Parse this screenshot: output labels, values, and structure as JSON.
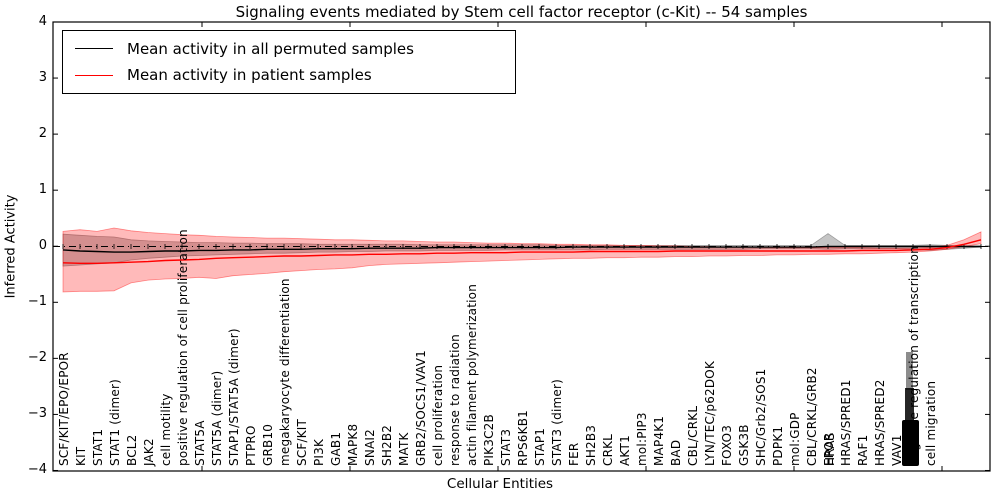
{
  "chart_data": {
    "type": "line",
    "title": "Signaling events mediated by Stem cell factor receptor (c-Kit) -- 54 samples",
    "xlabel": "Cellular Entities",
    "ylabel": "Inferred Activity",
    "ylim": [
      -4,
      4
    ],
    "ytick_labels": [
      "4",
      "3",
      "2",
      "1",
      "0",
      "−1",
      "−2",
      "−3",
      "−4"
    ],
    "grid": false,
    "legend": {
      "position": "upper left",
      "entries": [
        {
          "label": "Mean activity in all permuted samples",
          "color": "#000000"
        },
        {
          "label": "Mean activity in patient samples",
          "color": "#ff0000"
        }
      ]
    },
    "zero_reference_line": {
      "value": 0,
      "style": "dash-dot",
      "color": "#000000"
    },
    "n_positions": 55,
    "x_labels": [
      {
        "text": "SCF/KIT/EPO/EPOR",
        "slot": 0
      },
      {
        "text": "KIT",
        "slot": 1
      },
      {
        "text": "STAT1",
        "slot": 2
      },
      {
        "text": "STAT1 (dimer)",
        "slot": 3
      },
      {
        "text": "BCL2",
        "slot": 4
      },
      {
        "text": "JAK2",
        "slot": 5
      },
      {
        "text": "cell motility",
        "slot": 6
      },
      {
        "text": "positive regulation of cell proliferation",
        "slot": 7
      },
      {
        "text": "STAT5A",
        "slot": 8
      },
      {
        "text": "STAT5A (dimer)",
        "slot": 9
      },
      {
        "text": "STAP1/STAT5A (dimer)",
        "slot": 10
      },
      {
        "text": "PTPRO",
        "slot": 11
      },
      {
        "text": "GRB10",
        "slot": 12
      },
      {
        "text": "megakaryocyte differentiation",
        "slot": 13
      },
      {
        "text": "SCF/KIT",
        "slot": 14
      },
      {
        "text": "PI3K",
        "slot": 15
      },
      {
        "text": "GAB1",
        "slot": 16
      },
      {
        "text": "MAPK8",
        "slot": 17
      },
      {
        "text": "SNAI2",
        "slot": 18
      },
      {
        "text": "SH2B2",
        "slot": 19
      },
      {
        "text": "MATK",
        "slot": 20
      },
      {
        "text": "GRB2/SOCS1/VAV1",
        "slot": 21
      },
      {
        "text": "cell proliferation",
        "slot": 22
      },
      {
        "text": "response to radiation",
        "slot": 23
      },
      {
        "text": "actin filament polymerization",
        "slot": 24
      },
      {
        "text": "PIK3C2B",
        "slot": 25
      },
      {
        "text": "STAT3",
        "slot": 26
      },
      {
        "text": "RPS6KB1",
        "slot": 27
      },
      {
        "text": "STAP1",
        "slot": 28
      },
      {
        "text": "STAT3 (dimer)",
        "slot": 29
      },
      {
        "text": "FER",
        "slot": 30
      },
      {
        "text": "SH2B3",
        "slot": 31
      },
      {
        "text": "CRKL",
        "slot": 32
      },
      {
        "text": "AKT1",
        "slot": 33
      },
      {
        "text": "mol:PIP3",
        "slot": 34
      },
      {
        "text": "MAP4K1",
        "slot": 35
      },
      {
        "text": "BAD",
        "slot": 36
      },
      {
        "text": "CBL/CRKL",
        "slot": 37
      },
      {
        "text": "LYN/TEC/p62DOK",
        "slot": 38
      },
      {
        "text": "FOXO3",
        "slot": 39
      },
      {
        "text": "GSK3B",
        "slot": 40
      },
      {
        "text": "SHC/Grb2/SOS1",
        "slot": 41
      },
      {
        "text": "PDPK1",
        "slot": 42
      },
      {
        "text": "mol:GDP",
        "slot": 43
      },
      {
        "text": "CBL/CRKL/GRB2",
        "slot": 44
      },
      {
        "text": "EPOR",
        "slot": 45,
        "overlapped": true
      },
      {
        "text": "HRAS",
        "slot": 45.08,
        "overlapped": true
      },
      {
        "text": "HRAS/SPRED1",
        "slot": 46
      },
      {
        "text": "RAF1",
        "slot": 47
      },
      {
        "text": "HRAS/SPRED2",
        "slot": 48
      },
      {
        "text": "VAV1",
        "slot": 49
      },
      {
        "text": "negative regulation of transcription",
        "slot": 50,
        "overlapped": true
      },
      {
        "text": "cell migration",
        "slot": 51
      }
    ],
    "illegible_overlapping_label_cluster": {
      "slot": 50,
      "note": "several tick labels overprinted into an unreadable black block"
    },
    "series": [
      {
        "name": "Mean activity in all permuted samples",
        "color": "#000000",
        "values": [
          -0.06,
          -0.08,
          -0.09,
          -0.1,
          -0.1,
          -0.09,
          -0.08,
          -0.08,
          -0.07,
          -0.07,
          -0.06,
          -0.06,
          -0.05,
          -0.05,
          -0.05,
          -0.04,
          -0.04,
          -0.04,
          -0.03,
          -0.03,
          -0.03,
          -0.03,
          -0.02,
          -0.02,
          -0.02,
          -0.02,
          -0.02,
          -0.02,
          -0.02,
          -0.02,
          -0.01,
          -0.01,
          -0.01,
          -0.01,
          -0.01,
          -0.01,
          -0.01,
          -0.01,
          -0.01,
          -0.01,
          -0.01,
          -0.01,
          -0.01,
          -0.01,
          -0.01,
          0.0,
          0.0,
          0.0,
          0.0,
          0.0,
          0.0,
          0.0,
          0.0,
          0.0,
          0.0
        ]
      },
      {
        "name": "Mean activity in patient samples",
        "color": "#ff0000",
        "values": [
          -0.29,
          -0.3,
          -0.3,
          -0.29,
          -0.28,
          -0.27,
          -0.25,
          -0.24,
          -0.23,
          -0.21,
          -0.2,
          -0.19,
          -0.18,
          -0.17,
          -0.17,
          -0.16,
          -0.15,
          -0.15,
          -0.14,
          -0.14,
          -0.13,
          -0.13,
          -0.12,
          -0.12,
          -0.11,
          -0.11,
          -0.11,
          -0.1,
          -0.1,
          -0.1,
          -0.1,
          -0.09,
          -0.09,
          -0.09,
          -0.09,
          -0.09,
          -0.08,
          -0.08,
          -0.08,
          -0.08,
          -0.08,
          -0.08,
          -0.08,
          -0.08,
          -0.08,
          -0.08,
          -0.08,
          -0.07,
          -0.07,
          -0.07,
          -0.06,
          -0.05,
          -0.02,
          0.04,
          0.12
        ]
      }
    ],
    "bands": [
      {
        "name": "permuted samples activity range",
        "color": "#7f7f7f",
        "opacity": 0.45,
        "upper": [
          0.22,
          0.2,
          0.18,
          0.17,
          0.12,
          0.1,
          0.09,
          0.08,
          0.07,
          0.07,
          0.06,
          0.06,
          0.05,
          0.05,
          0.05,
          0.04,
          0.04,
          0.04,
          0.04,
          0.04,
          0.04,
          0.03,
          0.03,
          0.03,
          0.03,
          0.03,
          0.03,
          0.03,
          0.03,
          0.02,
          0.02,
          0.02,
          0.02,
          0.02,
          0.02,
          0.02,
          0.02,
          0.02,
          0.02,
          0.02,
          0.02,
          0.02,
          0.02,
          0.02,
          0.02,
          0.23,
          0.02,
          0.02,
          0.02,
          0.02,
          0.02,
          0.03,
          0.02,
          0.01,
          0.01
        ],
        "lower": [
          -0.35,
          -0.33,
          -0.31,
          -0.29,
          -0.24,
          -0.21,
          -0.19,
          -0.17,
          -0.16,
          -0.15,
          -0.14,
          -0.13,
          -0.12,
          -0.12,
          -0.11,
          -0.1,
          -0.1,
          -0.09,
          -0.09,
          -0.08,
          -0.08,
          -0.08,
          -0.07,
          -0.07,
          -0.07,
          -0.07,
          -0.06,
          -0.06,
          -0.06,
          -0.06,
          -0.06,
          -0.06,
          -0.05,
          -0.05,
          -0.05,
          -0.05,
          -0.05,
          -0.05,
          -0.05,
          -0.05,
          -0.05,
          -0.04,
          -0.04,
          -0.04,
          -0.04,
          -0.05,
          -0.04,
          -0.04,
          -0.04,
          -0.04,
          -0.05,
          -0.07,
          -0.05,
          -0.03,
          -0.01
        ]
      },
      {
        "name": "patient samples activity range",
        "color": "#ff0000",
        "opacity": 0.27,
        "upper": [
          0.27,
          0.3,
          0.27,
          0.33,
          0.28,
          0.25,
          0.23,
          0.21,
          0.2,
          0.18,
          0.17,
          0.16,
          0.15,
          0.15,
          0.14,
          0.13,
          0.12,
          0.12,
          0.11,
          0.1,
          0.1,
          0.09,
          0.08,
          0.08,
          0.07,
          0.06,
          0.06,
          0.05,
          0.05,
          0.04,
          0.04,
          0.03,
          0.03,
          0.02,
          0.02,
          0.01,
          0.01,
          0.0,
          0.0,
          -0.01,
          -0.01,
          -0.01,
          -0.02,
          -0.02,
          -0.02,
          -0.02,
          -0.02,
          -0.02,
          -0.03,
          -0.03,
          -0.03,
          -0.02,
          0.02,
          0.12,
          0.26
        ],
        "lower": [
          -0.81,
          -0.8,
          -0.8,
          -0.79,
          -0.65,
          -0.6,
          -0.58,
          -0.57,
          -0.55,
          -0.57,
          -0.52,
          -0.5,
          -0.48,
          -0.45,
          -0.43,
          -0.41,
          -0.4,
          -0.38,
          -0.34,
          -0.32,
          -0.31,
          -0.3,
          -0.29,
          -0.28,
          -0.27,
          -0.26,
          -0.25,
          -0.24,
          -0.23,
          -0.22,
          -0.21,
          -0.21,
          -0.2,
          -0.2,
          -0.19,
          -0.19,
          -0.18,
          -0.18,
          -0.17,
          -0.17,
          -0.16,
          -0.16,
          -0.15,
          -0.15,
          -0.14,
          -0.14,
          -0.13,
          -0.13,
          -0.12,
          -0.11,
          -0.1,
          -0.08,
          -0.05,
          0.0,
          0.05
        ]
      }
    ]
  }
}
